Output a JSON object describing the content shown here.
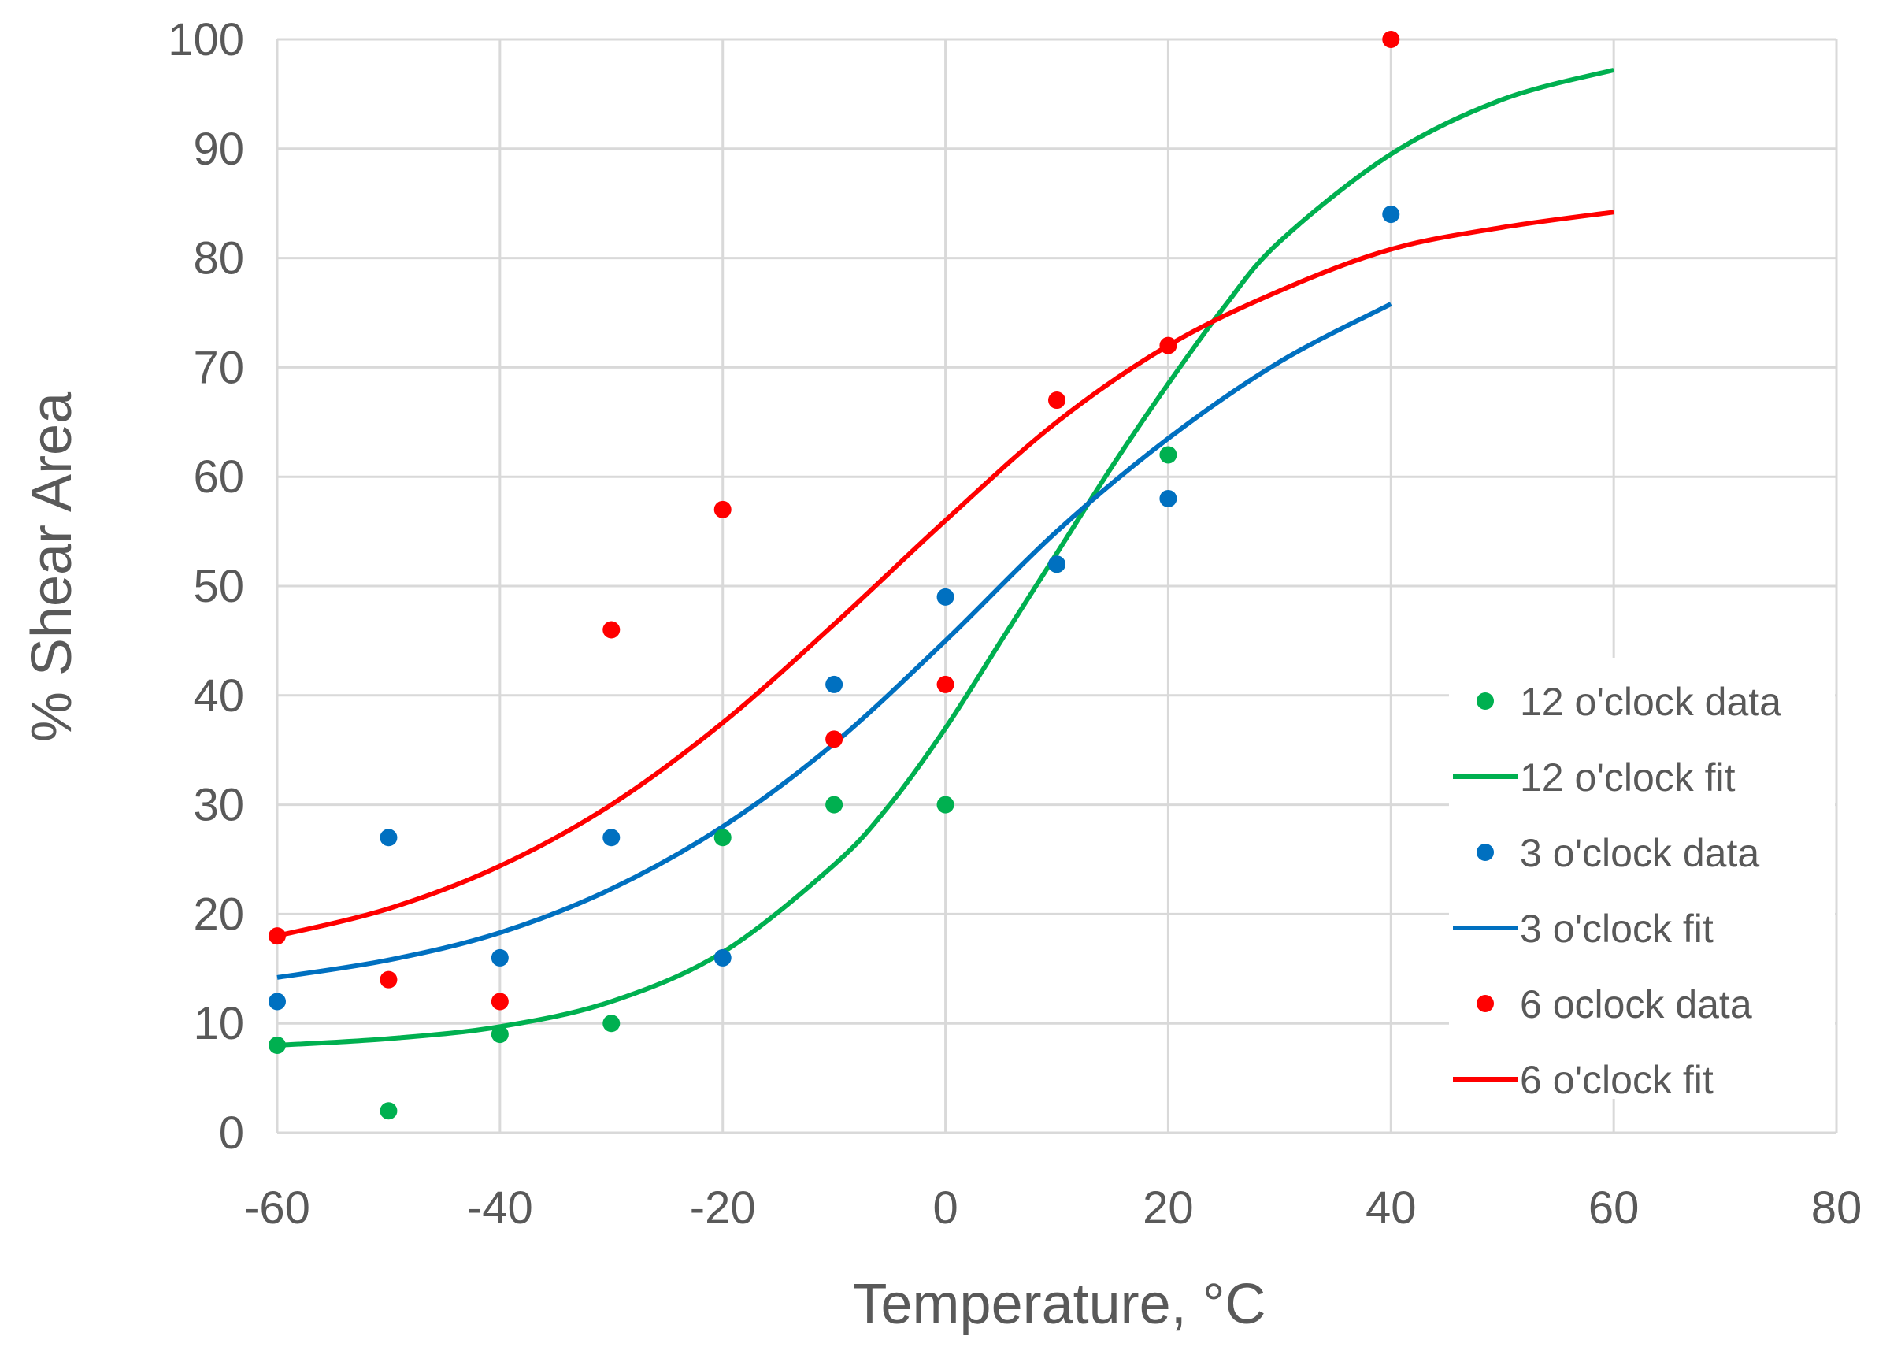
{
  "chart_data": {
    "type": "scatter",
    "title": "",
    "xlabel": "Temperature, °C",
    "ylabel": "% Shear Area",
    "xlim": [
      -60,
      80
    ],
    "ylim": [
      0,
      100
    ],
    "xticks": [
      -60,
      -40,
      -20,
      0,
      20,
      40,
      60,
      80
    ],
    "yticks": [
      0,
      10,
      20,
      30,
      40,
      50,
      60,
      70,
      80,
      90,
      100
    ],
    "grid": true,
    "legend_position": "right",
    "series": [
      {
        "name": "12 o'clock data",
        "kind": "points",
        "color": "#00b050",
        "x": [
          -60,
          -50,
          -40,
          -30,
          -20,
          -10,
          0,
          10,
          20
        ],
        "y": [
          8,
          2,
          9,
          10,
          27,
          30,
          30,
          52,
          62
        ]
      },
      {
        "name": "12 o'clock fit",
        "kind": "line",
        "color": "#00b050",
        "x": [
          -60,
          -50,
          -40,
          -30,
          -20,
          -10,
          -5,
          0,
          5,
          10,
          15,
          20,
          25,
          30,
          40,
          50,
          60
        ],
        "y": [
          8,
          8.6,
          9.7,
          12,
          16.5,
          24.5,
          30,
          37,
          45,
          53,
          61,
          68.5,
          75.5,
          81.5,
          89.5,
          94.5,
          97.2
        ]
      },
      {
        "name": "3 o'clock data",
        "kind": "points",
        "color": "#0070c0",
        "x": [
          -60,
          -50,
          -40,
          -30,
          -20,
          -10,
          0,
          10,
          20,
          40
        ],
        "y": [
          12,
          27,
          16,
          27,
          16,
          41,
          49,
          52,
          58,
          84
        ]
      },
      {
        "name": "3 o'clock fit",
        "kind": "line",
        "color": "#0070c0",
        "x": [
          -60,
          -50,
          -40,
          -30,
          -20,
          -10,
          0,
          10,
          20,
          30,
          40
        ],
        "y": [
          14.2,
          15.8,
          18.3,
          22.3,
          28,
          35.6,
          45,
          55,
          63.5,
          70.5,
          75.8
        ]
      },
      {
        "name": "6 oclock data",
        "kind": "points",
        "color": "#ff0000",
        "x": [
          -60,
          -50,
          -40,
          -30,
          -20,
          -10,
          0,
          10,
          20,
          40
        ],
        "y": [
          18,
          14,
          12,
          46,
          57,
          36,
          41,
          67,
          72,
          100
        ]
      },
      {
        "name": "6 o'clock fit",
        "kind": "line",
        "color": "#ff0000",
        "x": [
          -60,
          -50,
          -40,
          -30,
          -20,
          -10,
          0,
          10,
          20,
          30,
          40,
          50,
          60
        ],
        "y": [
          18,
          20.5,
          24.4,
          30,
          37.5,
          46.5,
          56,
          65,
          72,
          77,
          80.8,
          82.8,
          84.2
        ]
      }
    ]
  }
}
